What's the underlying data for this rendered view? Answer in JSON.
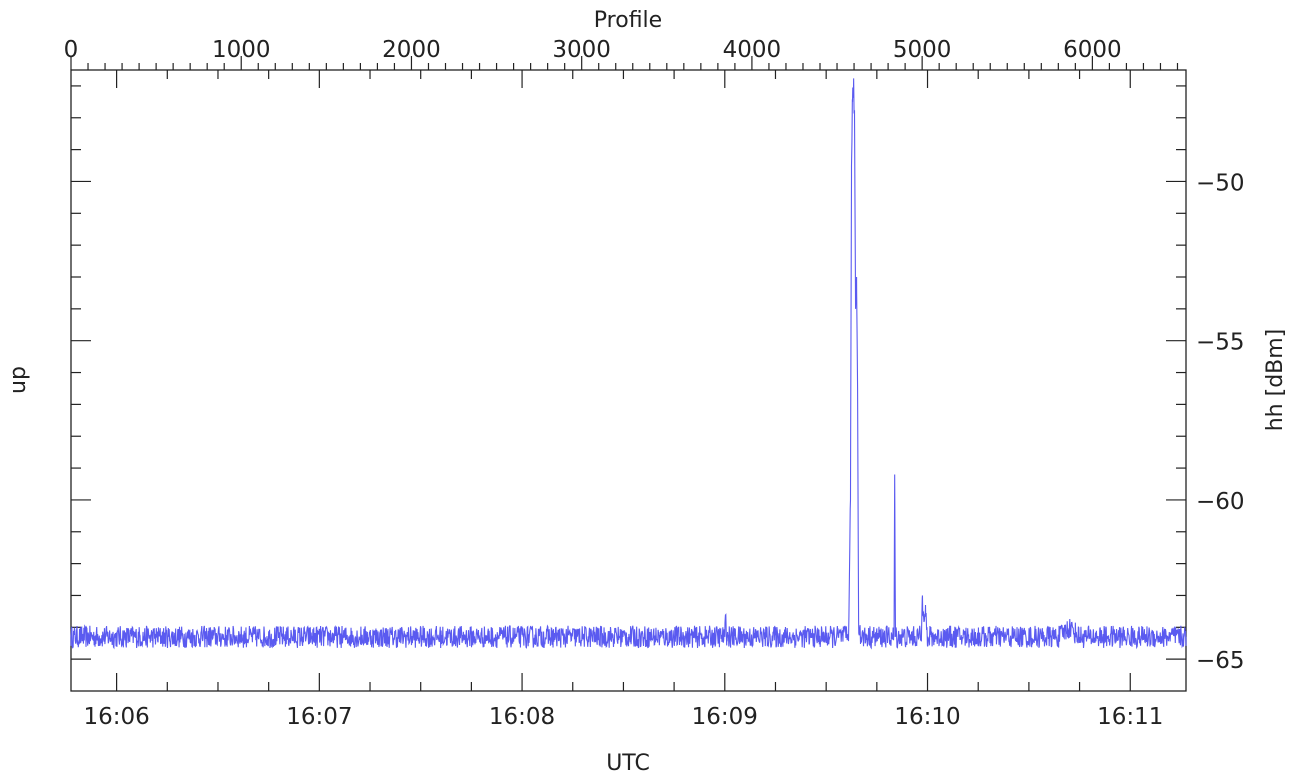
{
  "chart_data": {
    "type": "line",
    "title": "",
    "xlabel": "UTC",
    "x2label": "Profile",
    "ylabel_left": "up",
    "ylabel_right": "hh [dBm]",
    "x_ticks_bottom": [
      "16:06",
      "16:07",
      "16:08",
      "16:09",
      "16:10",
      "16:11"
    ],
    "x_range_minutes_after_1600": [
      5.775,
      11.275
    ],
    "x_ticks_top": [
      "0",
      "1000",
      "2000",
      "3000",
      "4000",
      "5000",
      "6000"
    ],
    "profile_range": [
      0,
      6550
    ],
    "y_ticks_right": [
      "-50",
      "-55",
      "-60",
      "-65"
    ],
    "y_range": [
      -66,
      -46.5
    ],
    "grid": false,
    "series": [
      {
        "color": "#5a5af0",
        "baseline": -64.3,
        "noise_amplitude": 0.35,
        "points": [
          [
            5.775,
            -64.3
          ],
          [
            9.0,
            -64.3
          ],
          [
            9.005,
            -63.6
          ],
          [
            9.01,
            -64.3
          ],
          [
            9.61,
            -64.3
          ],
          [
            9.62,
            -60.0
          ],
          [
            9.625,
            -49.5
          ],
          [
            9.63,
            -47.5
          ],
          [
            9.635,
            -47.0
          ],
          [
            9.64,
            -48.0
          ],
          [
            9.645,
            -54.0
          ],
          [
            9.65,
            -53.0
          ],
          [
            9.655,
            -56.5
          ],
          [
            9.66,
            -63.8
          ],
          [
            9.67,
            -64.3
          ],
          [
            9.835,
            -64.3
          ],
          [
            9.838,
            -59.2
          ],
          [
            9.842,
            -64.3
          ],
          [
            9.97,
            -64.3
          ],
          [
            9.975,
            -63.0
          ],
          [
            9.98,
            -63.5
          ],
          [
            9.99,
            -63.3
          ],
          [
            10.0,
            -64.6
          ],
          [
            10.01,
            -64.3
          ],
          [
            10.65,
            -64.3
          ],
          [
            10.7,
            -64.0
          ],
          [
            10.75,
            -64.3
          ],
          [
            11.275,
            -64.3
          ]
        ]
      }
    ]
  }
}
